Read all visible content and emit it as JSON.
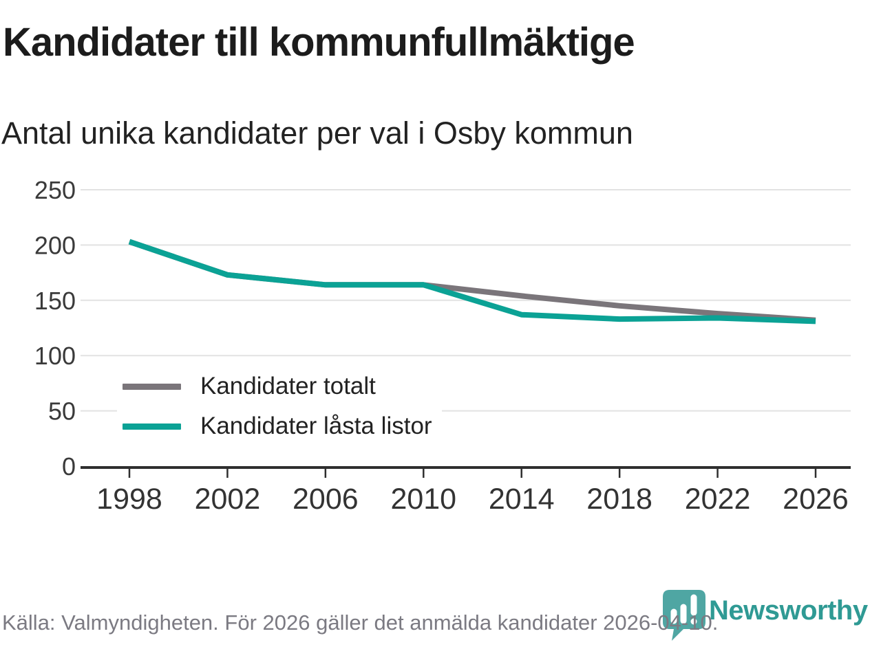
{
  "header": {
    "title": "Kandidater till kommunfullmäktige",
    "subtitle": "Antal unika kandidater per val i Osby kommun"
  },
  "chart_data": {
    "type": "line",
    "categories": [
      1998,
      2002,
      2006,
      2010,
      2014,
      2018,
      2022,
      2026
    ],
    "series": [
      {
        "name": "Kandidater totalt",
        "color": "#7a757a",
        "values": [
          203,
          173,
          164,
          164,
          154,
          145,
          138,
          132
        ]
      },
      {
        "name": "Kandidater låsta listor",
        "color": "#0ba295",
        "values": [
          203,
          173,
          164,
          164,
          137,
          133,
          134,
          131
        ]
      }
    ],
    "title": "Kandidater till kommunfullmäktige",
    "subtitle": "Antal unika kandidater per val i Osby kommun",
    "xlabel": "",
    "ylabel": "",
    "ylim": [
      0,
      250
    ],
    "yticks": [
      0,
      50,
      100,
      150,
      200,
      250
    ],
    "xticks": [
      1998,
      2002,
      2006,
      2010,
      2014,
      2018,
      2022,
      2026
    ],
    "grid": true,
    "legend_position": "inside-bottom-left"
  },
  "footer": {
    "source": "Källa: Valmyndigheten. För 2026 gäller det anmälda kandidater 2026-04-10.",
    "brand": "Newsworthy"
  },
  "icons": {
    "newsworthy_logo_icon": "speech-bubble-with-bar-chart-and-exclamation"
  },
  "colors": {
    "series_total": "#7a757a",
    "series_locked_lists": "#0ba295",
    "grid": "#e2e2e2",
    "axis": "#2e2e2e",
    "tick_label": "#3a3a3a",
    "title_text": "#1c1c1c",
    "source_text": "#7b7a82",
    "logo_icon": "#4fa6a3",
    "logo_text": "#2f9a94"
  }
}
